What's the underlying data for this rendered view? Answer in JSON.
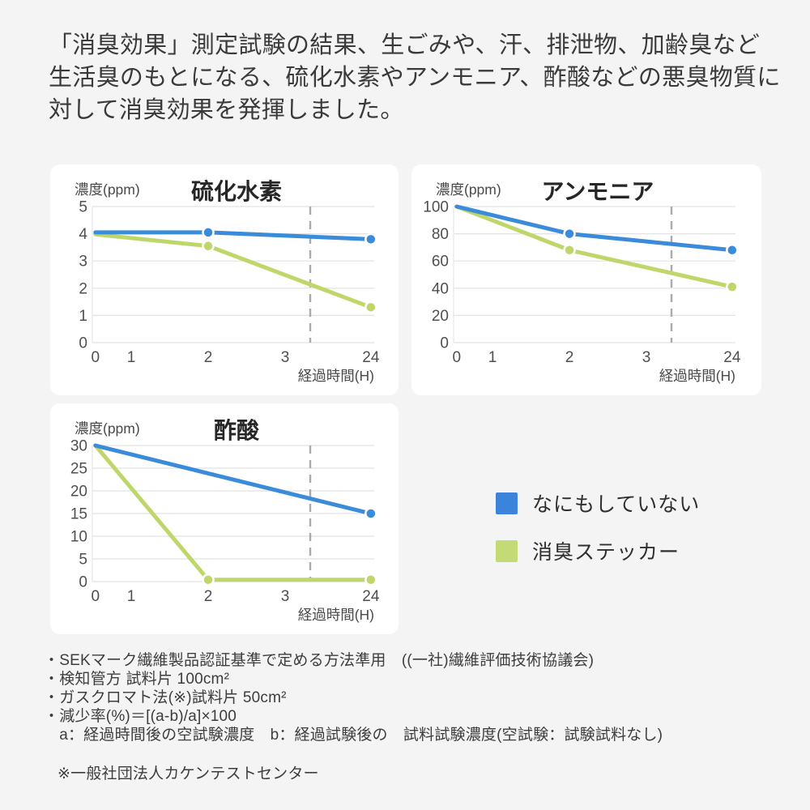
{
  "page": {
    "background": "#f4f4f5",
    "card_background": "#ffffff",
    "intro_text": "「消臭効果」測定試験の結果、生ごみや、汗、排泄物、加齢臭など生活臭のもとになる、硫化水素やアンモニア、酢酸などの悪臭物質に対して消臭効果を発揮しました。"
  },
  "colors": {
    "untreated": "#3b8bdb",
    "sticker": "#bfd76a",
    "legend_untreated": "#3c83dc",
    "legend_sticker": "#c3da77",
    "grid": "#e2e2e2",
    "axis": "#e6e6e6",
    "dashed_guide": "#aaaaae",
    "tick_text": "#4f4f4f",
    "label_text": "#4a4a4a",
    "title_text": "#262626"
  },
  "legend": {
    "position": "right-middle",
    "items": [
      {
        "key": "untreated",
        "label": "なにもしていない",
        "color": "#3c83dc"
      },
      {
        "key": "sticker",
        "label": "消臭ステッカー",
        "color": "#c3da77"
      }
    ]
  },
  "chart_data": [
    {
      "type": "line",
      "title": "硫化水素",
      "ylabel": "濃度(ppm)",
      "xlabel": "経過時間(H)",
      "x_categories": [
        "0",
        "1",
        "2",
        "3",
        "24"
      ],
      "yticks": [
        5,
        4,
        3,
        2,
        1,
        0
      ],
      "ylim": [
        0,
        5
      ],
      "grid": "horizontal",
      "dashed_vline_between": [
        "3",
        "24"
      ],
      "series": [
        {
          "name": "なにもしていない",
          "color_key": "untreated",
          "points": [
            {
              "x": "0",
              "y": 4.05,
              "dot": false
            },
            {
              "x": "2",
              "y": 4.05,
              "dot": true
            },
            {
              "x": "24",
              "y": 3.8,
              "dot": true
            }
          ]
        },
        {
          "name": "消臭ステッカー",
          "color_key": "sticker",
          "points": [
            {
              "x": "0",
              "y": 3.98,
              "dot": false
            },
            {
              "x": "2",
              "y": 3.55,
              "dot": true
            },
            {
              "x": "24",
              "y": 1.3,
              "dot": true
            }
          ]
        }
      ]
    },
    {
      "type": "line",
      "title": "アンモニア",
      "ylabel": "濃度(ppm)",
      "xlabel": "経過時間(H)",
      "x_categories": [
        "0",
        "1",
        "2",
        "3",
        "24"
      ],
      "yticks": [
        100,
        80,
        60,
        40,
        20,
        0
      ],
      "ylim": [
        0,
        100
      ],
      "grid": "horizontal",
      "dashed_vline_between": [
        "3",
        "24"
      ],
      "series": [
        {
          "name": "なにもしていない",
          "color_key": "untreated",
          "points": [
            {
              "x": "0",
              "y": 100,
              "dot": false
            },
            {
              "x": "2",
              "y": 80,
              "dot": true
            },
            {
              "x": "24",
              "y": 68,
              "dot": true
            }
          ]
        },
        {
          "name": "消臭ステッカー",
          "color_key": "sticker",
          "points": [
            {
              "x": "0",
              "y": 100,
              "dot": false
            },
            {
              "x": "2",
              "y": 68,
              "dot": true
            },
            {
              "x": "24",
              "y": 41,
              "dot": true
            }
          ]
        }
      ]
    },
    {
      "type": "line",
      "title": "酢酸",
      "ylabel": "濃度(ppm)",
      "xlabel": "経過時間(H)",
      "x_categories": [
        "0",
        "1",
        "2",
        "3",
        "24"
      ],
      "yticks": [
        30,
        25,
        20,
        15,
        10,
        5,
        0
      ],
      "ylim": [
        0,
        30
      ],
      "grid": "horizontal",
      "dashed_vline_between": [
        "3",
        "24"
      ],
      "series": [
        {
          "name": "なにもしていない",
          "color_key": "untreated",
          "points": [
            {
              "x": "0",
              "y": 30,
              "dot": false
            },
            {
              "x": "24",
              "y": 15,
              "dot": true
            }
          ]
        },
        {
          "name": "消臭ステッカー",
          "color_key": "sticker",
          "points": [
            {
              "x": "0",
              "y": 30,
              "dot": false
            },
            {
              "x": "2",
              "y": 0.4,
              "dot": true
            },
            {
              "x": "24",
              "y": 0.4,
              "dot": true
            }
          ]
        }
      ]
    }
  ],
  "footnotes": {
    "lines": [
      "・SEKマーク繊維製品認証基準で定める方法準用　((一社)繊維評価技術協議会)",
      "・検知管方 試料片 100cm²",
      "・ガスクロマト法(※)試料片 50cm²",
      "・減少率(%)＝[(a-b)/a]×100",
      "　a：経過時間後の空試験濃度　b：経過試験後の　試料試験濃度(空試験：試験試料なし)"
    ],
    "source": "※一般社団法人カケンテストセンター"
  }
}
